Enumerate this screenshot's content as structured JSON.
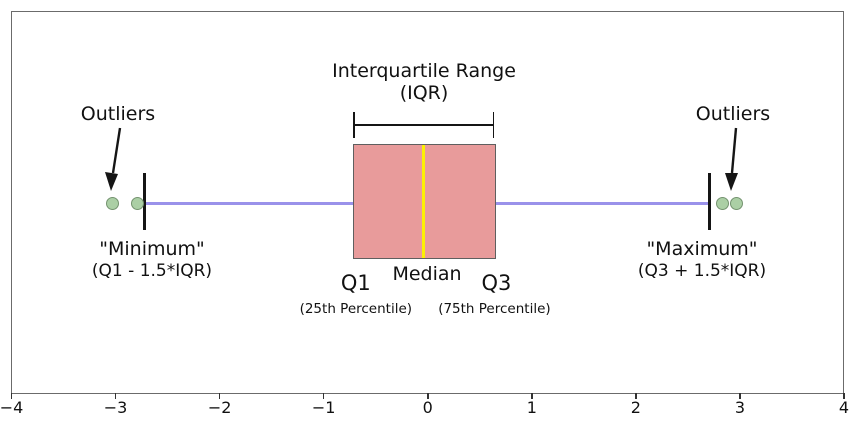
{
  "annotations": {
    "iqr_title_line1": "Interquartile Range",
    "iqr_title_line2": "(IQR)",
    "outliers_left": "Outliers",
    "outliers_right": "Outliers",
    "min_line1": "\"Minimum\"",
    "min_line2": "(Q1 - 1.5*IQR)",
    "max_line1": "\"Maximum\"",
    "max_line2": "(Q3 + 1.5*IQR)",
    "q1_label": "Q1",
    "q1_sub": "(25th Percentile)",
    "median_label": "Median",
    "q3_label": "Q3",
    "q3_sub": "(75th Percentile)"
  },
  "chart_data": {
    "type": "boxplot",
    "orientation": "horizontal",
    "title": "Interquartile Range (IQR)",
    "xlabel": "",
    "ylabel": "",
    "xlim": [
      -4,
      4
    ],
    "x_tick_values": [
      -4,
      -3,
      -2,
      -1,
      0,
      1,
      2,
      3,
      4
    ],
    "x_tick_labels": [
      "−4",
      "−3",
      "−2",
      "−1",
      "0",
      "1",
      "2",
      "3",
      "4"
    ],
    "grid": false,
    "box": {
      "q1": -0.72,
      "median": -0.04,
      "q3": 0.66,
      "whisker_low": -2.72,
      "whisker_high": 2.71,
      "outliers": [
        -3.03,
        -2.79,
        2.83,
        2.97
      ]
    },
    "colors": {
      "box_fill": "#e89b9b",
      "box_edge": "#5f5f5f",
      "median": "#fcf003",
      "whisker": "#9a92ea",
      "outlier_fill": "#abcfa5",
      "outlier_edge": "#74936f",
      "frame": "#6b6b6b",
      "annotation_text": "#111111"
    }
  }
}
